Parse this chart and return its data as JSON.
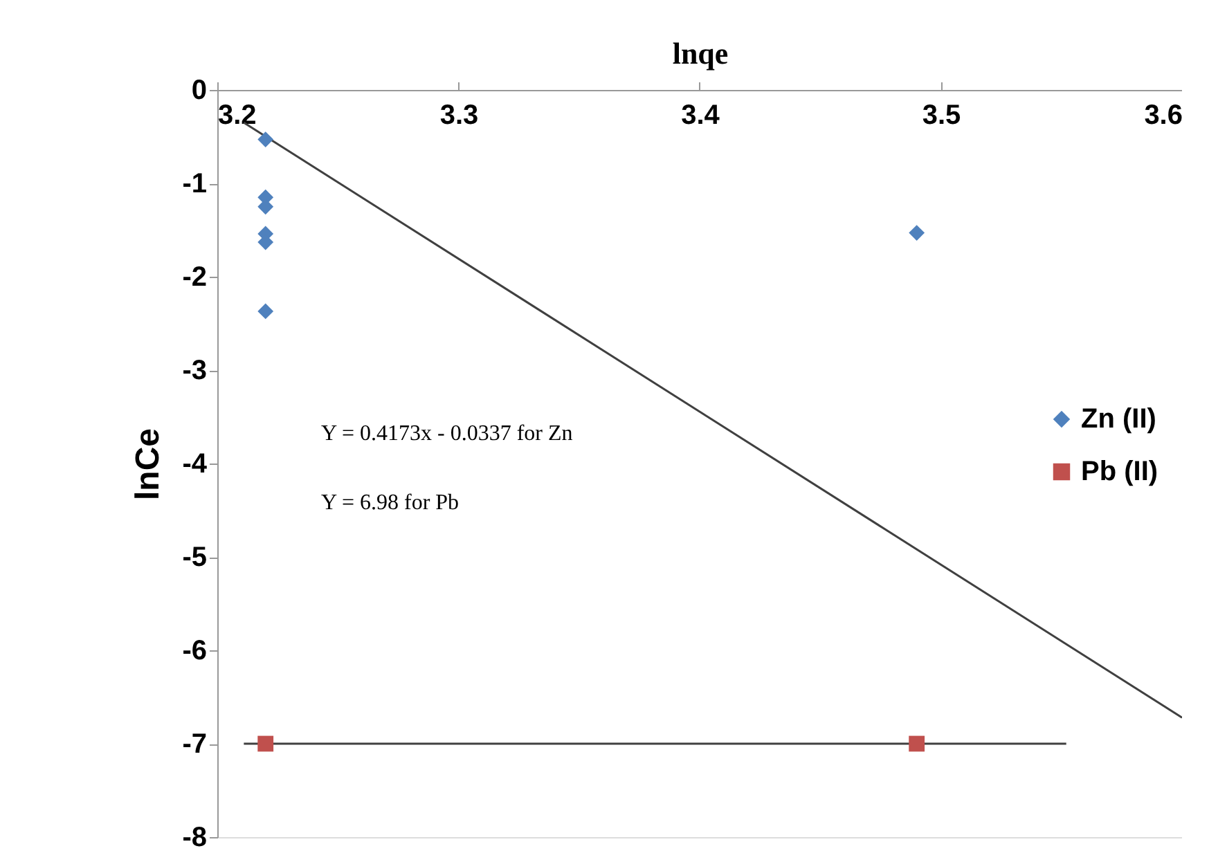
{
  "chart_data": {
    "type": "scatter",
    "xlabel": "lnqe",
    "ylabel": "lnCe",
    "xlim": [
      3.2,
      3.6
    ],
    "xticks": [
      3.2,
      3.3,
      3.4,
      3.5,
      3.6
    ],
    "ylim": [
      -8,
      0
    ],
    "yticks": [
      0,
      -1,
      -2,
      -3,
      -4,
      -5,
      -6,
      -7,
      -8
    ],
    "grid": false,
    "legend": "right",
    "series": [
      {
        "name": "Zn (II)",
        "color": "#4f81bd",
        "marker": "diamond",
        "x": [
          3.22,
          3.22,
          3.22,
          3.22,
          3.22,
          3.22,
          3.49
        ],
        "values": [
          -0.53,
          -1.15,
          -1.25,
          -1.54,
          -1.63,
          -2.37,
          -1.53
        ]
      },
      {
        "name": "Pb (II)",
        "color": "#c0504d",
        "marker": "square",
        "x": [
          3.22,
          3.49
        ],
        "values": [
          -7,
          -7
        ]
      },
      {
        "type": "line",
        "color": "#404040",
        "marker": "none",
        "x": [
          3.211,
          3.6
        ],
        "values": [
          -0.35,
          -6.72
        ]
      },
      {
        "type": "line",
        "color": "#404040",
        "marker": "none",
        "x": [
          3.211,
          3.552
        ],
        "values": [
          -7,
          -7
        ]
      }
    ],
    "annotations": [
      "Y = 0.4173x - 0.0337 for Zn",
      "Y = 6.98 for Pb"
    ]
  }
}
